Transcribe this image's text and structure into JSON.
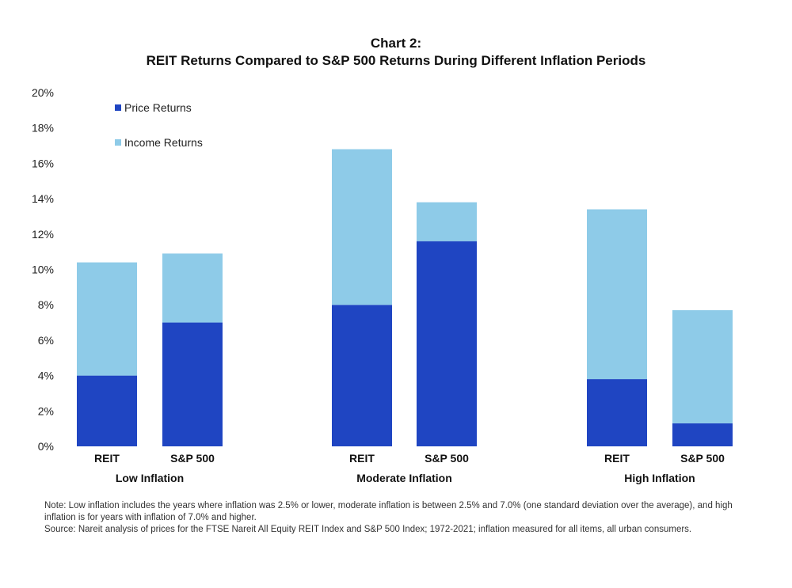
{
  "chart_data": {
    "type": "bar",
    "stacked": true,
    "title_line1": "Chart 2:",
    "title_line2": "REIT Returns Compared to S&P 500 Returns During Different Inflation Periods",
    "ylim": [
      0,
      20
    ],
    "yticks": [
      "0%",
      "2%",
      "4%",
      "6%",
      "8%",
      "10%",
      "12%",
      "14%",
      "16%",
      "18%",
      "20%"
    ],
    "ytick_values": [
      0,
      2,
      4,
      6,
      8,
      10,
      12,
      14,
      16,
      18,
      20
    ],
    "grid": false,
    "legend_position": "top-left",
    "groups": [
      {
        "label": "Low Inflation",
        "bars": [
          {
            "category": "REIT",
            "price": 4.0,
            "income": 6.4
          },
          {
            "category": "S&P 500",
            "price": 7.0,
            "income": 3.9
          }
        ]
      },
      {
        "label": "Moderate Inflation",
        "bars": [
          {
            "category": "REIT",
            "price": 8.0,
            "income": 8.8
          },
          {
            "category": "S&P 500",
            "price": 11.6,
            "income": 2.2
          }
        ]
      },
      {
        "label": "High Inflation",
        "bars": [
          {
            "category": "REIT",
            "price": 3.8,
            "income": 9.6
          },
          {
            "category": "S&P 500",
            "price": 1.3,
            "income": 6.4
          }
        ]
      }
    ],
    "series": [
      {
        "name": "Price Returns",
        "key": "price",
        "color": "#1f45c2"
      },
      {
        "name": "Income Returns",
        "key": "income",
        "color": "#8ecbe8"
      }
    ]
  },
  "notes": {
    "note": "Note: Low inflation includes the years where inflation was 2.5% or lower, moderate inflation is between 2.5% and 7.0% (one standard deviation over the average), and high inflation is for years with inflation of 7.0% and higher.",
    "source": "Source: Nareit analysis of prices for the FTSE Nareit All Equity REIT Index and S&P 500 Index; 1972-2021; inflation measured for all items, all urban consumers."
  }
}
